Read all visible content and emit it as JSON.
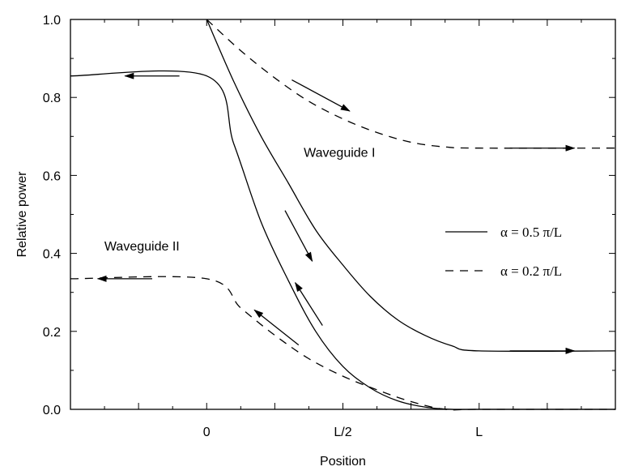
{
  "chart_data": {
    "type": "line",
    "xlabel": "Position",
    "ylabel": "Relative power",
    "xlim": [
      -2,
      6
    ],
    "ylim": [
      0,
      1
    ],
    "grid": false,
    "legend_placement": "right",
    "x_tick_labels": [
      {
        "x": 0,
        "label": "0"
      },
      {
        "x": 2,
        "label": "L/2"
      },
      {
        "x": 4,
        "label": "L"
      }
    ],
    "y_tick_labels": [
      {
        "y": 0,
        "label": "0.0"
      },
      {
        "y": 0.2,
        "label": "0.2"
      },
      {
        "y": 0.4,
        "label": "0.4"
      },
      {
        "y": 0.6,
        "label": "0.6"
      },
      {
        "y": 0.8,
        "label": "0.8"
      },
      {
        "y": 1.0,
        "label": "1.0"
      }
    ],
    "series": [
      {
        "name": "α = 0.5 π/L",
        "legend_label": "α = 0.5 π/L",
        "style": "solid",
        "curves": [
          {
            "role": "waveguide-I",
            "points": [
              [
                0,
                1.0
              ],
              [
                0.4,
                0.84
              ],
              [
                0.8,
                0.7
              ],
              [
                1.2,
                0.58
              ],
              [
                1.6,
                0.46
              ],
              [
                2.0,
                0.37
              ],
              [
                2.4,
                0.29
              ],
              [
                2.8,
                0.23
              ],
              [
                3.2,
                0.19
              ],
              [
                3.6,
                0.163
              ],
              [
                4.0,
                0.15
              ],
              [
                6.0,
                0.15
              ]
            ]
          },
          {
            "role": "waveguide-II",
            "points": [
              [
                -2,
                0.855
              ],
              [
                0,
                0.855
              ],
              [
                0.4,
                0.68
              ],
              [
                0.8,
                0.48
              ],
              [
                1.2,
                0.33
              ],
              [
                1.6,
                0.2
              ],
              [
                2.0,
                0.11
              ],
              [
                2.4,
                0.055
              ],
              [
                2.8,
                0.022
              ],
              [
                3.2,
                0.006
              ],
              [
                3.6,
                0.0
              ],
              [
                4.0,
                0.0
              ],
              [
                6.0,
                0.0
              ]
            ]
          }
        ]
      },
      {
        "name": "α = 0.2 π/L",
        "legend_label": "α = 0.2 π/L",
        "style": "dashed",
        "curves": [
          {
            "role": "waveguide-I",
            "points": [
              [
                0,
                1.0
              ],
              [
                0.5,
                0.92
              ],
              [
                1.0,
                0.85
              ],
              [
                1.5,
                0.79
              ],
              [
                2.0,
                0.745
              ],
              [
                2.5,
                0.71
              ],
              [
                3.0,
                0.685
              ],
              [
                3.5,
                0.673
              ],
              [
                4.0,
                0.67
              ],
              [
                6.0,
                0.67
              ]
            ]
          },
          {
            "role": "waveguide-II",
            "points": [
              [
                -2,
                0.335
              ],
              [
                0,
                0.335
              ],
              [
                0.5,
                0.26
              ],
              [
                1.0,
                0.19
              ],
              [
                1.5,
                0.13
              ],
              [
                2.0,
                0.085
              ],
              [
                2.5,
                0.05
              ],
              [
                3.0,
                0.02
              ],
              [
                3.5,
                0.0
              ],
              [
                4.0,
                0.0
              ],
              [
                6.0,
                0.0
              ]
            ]
          }
        ]
      }
    ],
    "annotations": [
      {
        "text": "Waveguide I",
        "x": 1.95,
        "y": 0.66
      },
      {
        "text": "Waveguide II",
        "x": -0.95,
        "y": 0.42
      }
    ],
    "arrows": [
      {
        "from": [
          -0.4,
          0.855
        ],
        "to": [
          -1.2,
          0.855
        ]
      },
      {
        "from": [
          1.25,
          0.845
        ],
        "to": [
          2.1,
          0.765
        ]
      },
      {
        "from": [
          4.45,
          0.67
        ],
        "to": [
          5.4,
          0.67
        ]
      },
      {
        "from": [
          1.15,
          0.51
        ],
        "to": [
          1.55,
          0.38
        ]
      },
      {
        "from": [
          1.7,
          0.215
        ],
        "to": [
          1.3,
          0.325
        ]
      },
      {
        "from": [
          -0.8,
          0.335
        ],
        "to": [
          -1.6,
          0.335
        ]
      },
      {
        "from": [
          1.35,
          0.165
        ],
        "to": [
          0.7,
          0.255
        ]
      },
      {
        "from": [
          4.45,
          0.15
        ],
        "to": [
          5.4,
          0.15
        ]
      }
    ]
  }
}
